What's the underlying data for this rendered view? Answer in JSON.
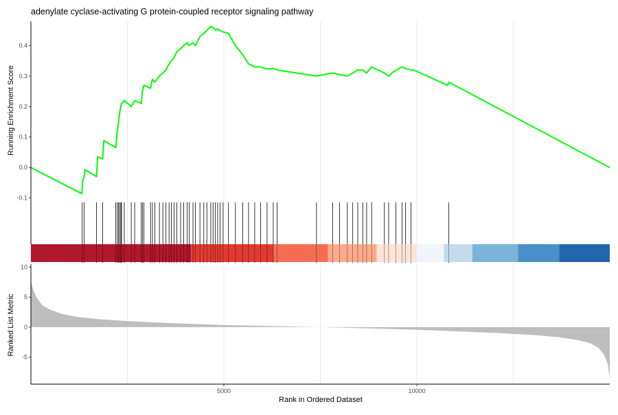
{
  "chart_data": {
    "type": "line",
    "title": "adenylate cyclase-activating G protein-coupled receptor signaling pathway",
    "xlabel": "Rank in Ordered Dataset",
    "x_ticks": [
      5000,
      10000
    ],
    "x_range": [
      0,
      15000
    ],
    "grid": true,
    "panels": {
      "running_score": {
        "ylabel": "Running Enrichment Score",
        "ylim": [
          -0.11,
          0.48
        ],
        "y_ticks": [
          -0.1,
          0.0,
          0.1,
          0.2,
          0.3,
          0.4
        ],
        "y_tick_labels": [
          "-0.1",
          "0.0",
          "0.1",
          "0.2",
          "0.3",
          "0.4"
        ],
        "line_color": "#00ff00",
        "series": [
          {
            "x": [
              0,
              1320,
              1340,
              1380,
              1400,
              1700,
              1730,
              1860,
              1890,
              2200,
              2240,
              2270,
              2300,
              2330,
              2350,
              2420,
              2600,
              2690,
              2860,
              2890,
              2930,
              3100,
              3150,
              3210,
              3330,
              3420,
              3500,
              3580,
              3640,
              3710,
              3780,
              3880,
              3960,
              4050,
              4100,
              4200,
              4260,
              4380,
              4480,
              4560,
              4660,
              4720,
              4780,
              4840,
              4900,
              4980,
              5120,
              5300,
              5490,
              5640,
              5800,
              5950,
              6120,
              6280,
              6380,
              7400,
              7820,
              8000,
              8200,
              8340,
              8470,
              8600,
              8700,
              8830,
              9000,
              9160,
              9270,
              9350,
              9460,
              9620,
              9710,
              9850,
              9920,
              10800,
              10830,
              15000
            ],
            "y": [
              0.0,
              -0.086,
              -0.045,
              -0.03,
              -0.007,
              -0.03,
              0.035,
              0.028,
              0.088,
              0.065,
              0.12,
              0.15,
              0.18,
              0.2,
              0.21,
              0.22,
              0.2,
              0.22,
              0.21,
              0.25,
              0.27,
              0.26,
              0.29,
              0.28,
              0.3,
              0.31,
              0.32,
              0.34,
              0.35,
              0.36,
              0.38,
              0.39,
              0.4,
              0.41,
              0.4,
              0.41,
              0.4,
              0.43,
              0.44,
              0.45,
              0.463,
              0.46,
              0.45,
              0.455,
              0.45,
              0.445,
              0.44,
              0.4,
              0.37,
              0.34,
              0.33,
              0.33,
              0.323,
              0.325,
              0.32,
              0.3,
              0.31,
              0.305,
              0.3,
              0.31,
              0.32,
              0.32,
              0.31,
              0.33,
              0.32,
              0.31,
              0.3,
              0.31,
              0.32,
              0.33,
              0.325,
              0.32,
              0.32,
              0.27,
              0.28,
              0.0
            ]
          }
        ]
      },
      "hits": {
        "gene_ranks": [
          1330,
          1380,
          1700,
          1860,
          2200,
          2240,
          2270,
          2300,
          2330,
          2350,
          2420,
          2600,
          2690,
          2860,
          2890,
          2930,
          3100,
          3150,
          3210,
          3330,
          3420,
          3500,
          3580,
          3640,
          3710,
          3780,
          3880,
          3960,
          4050,
          4100,
          4200,
          4260,
          4380,
          4480,
          4560,
          4660,
          4720,
          4780,
          4840,
          4900,
          4980,
          5120,
          5300,
          5490,
          5640,
          5800,
          5950,
          6120,
          6280,
          6380,
          7400,
          7820,
          8000,
          8200,
          8340,
          8470,
          8600,
          8700,
          8830,
          9160,
          9270,
          9460,
          9620,
          9710,
          9850,
          10830
        ]
      },
      "color_bar": {
        "segments": [
          {
            "from": 0,
            "to": 4150,
            "color": "#b2182b"
          },
          {
            "from": 4150,
            "to": 6280,
            "color": "#e23a32"
          },
          {
            "from": 6280,
            "to": 7700,
            "color": "#f46d52"
          },
          {
            "from": 7700,
            "to": 8960,
            "color": "#fbaa8c"
          },
          {
            "from": 8960,
            "to": 10000,
            "color": "#fee3d7"
          },
          {
            "from": 10000,
            "to": 10700,
            "color": "#f0f4fb"
          },
          {
            "from": 10700,
            "to": 11440,
            "color": "#c3dbea"
          },
          {
            "from": 11440,
            "to": 12620,
            "color": "#7bb4d8"
          },
          {
            "from": 12620,
            "to": 13690,
            "color": "#4a90c8"
          },
          {
            "from": 13690,
            "to": 15000,
            "color": "#2166ac"
          }
        ]
      },
      "ranked_list": {
        "ylabel": "Ranked List Metric",
        "ylim": [
          -9.5,
          10.5
        ],
        "y_ticks": [
          -5,
          0,
          5,
          10
        ],
        "fill_color": "#bebebe",
        "x": [
          0,
          60,
          150,
          300,
          500,
          800,
          1200,
          1800,
          2500,
          3500,
          5000,
          6500,
          7500,
          9000,
          10500,
          12000,
          13000,
          13700,
          14200,
          14500,
          14700,
          14850,
          14950,
          15000
        ],
        "y": [
          7.7,
          6.2,
          4.9,
          3.6,
          2.9,
          2.2,
          1.7,
          1.3,
          1.0,
          0.7,
          0.35,
          0.15,
          0.0,
          -0.25,
          -0.55,
          -0.95,
          -1.3,
          -1.7,
          -2.2,
          -2.7,
          -3.4,
          -4.6,
          -6.2,
          -8.6
        ]
      }
    }
  }
}
